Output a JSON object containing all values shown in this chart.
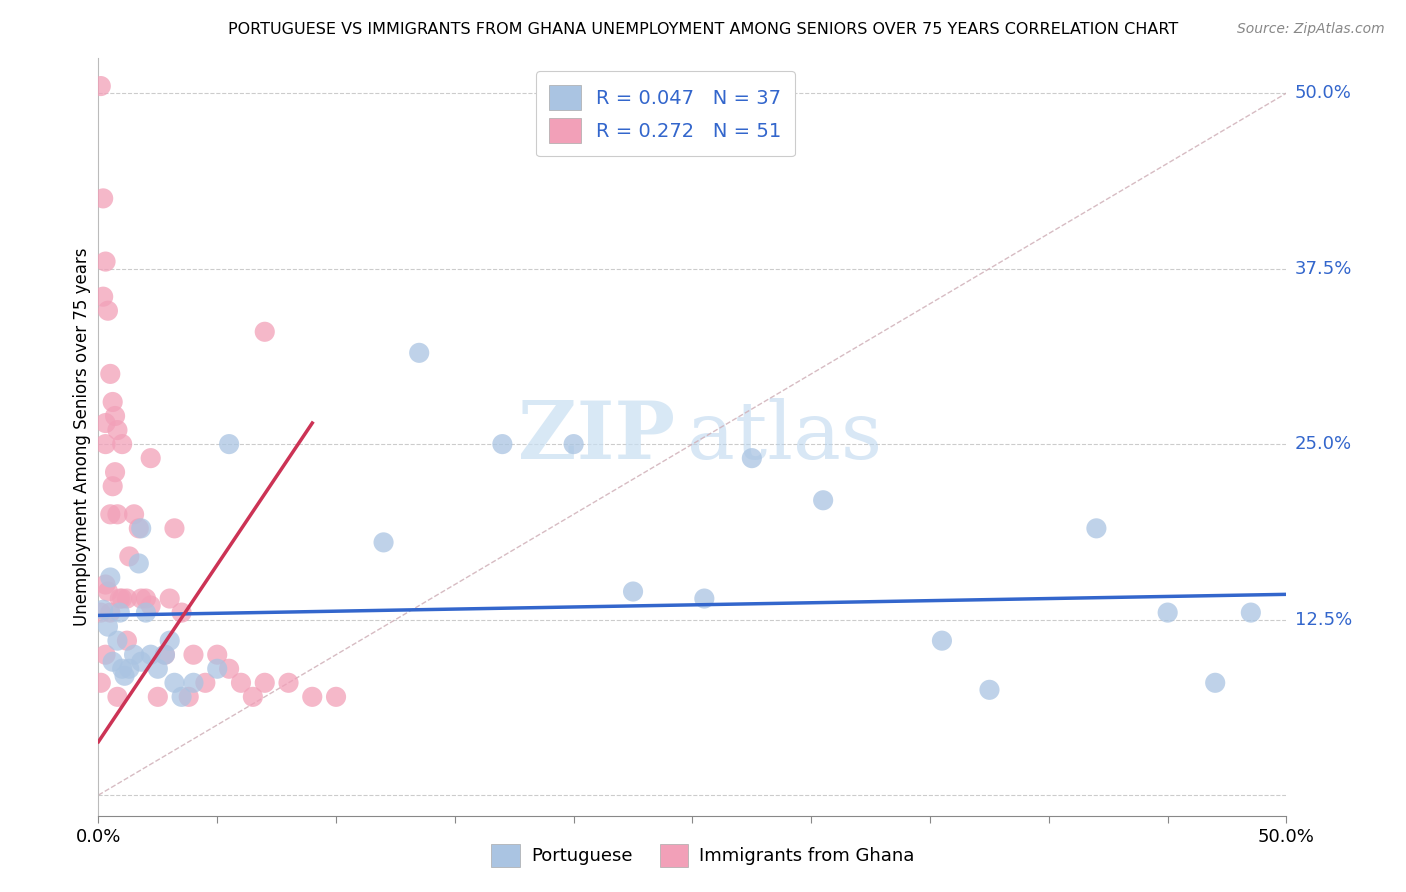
{
  "title": "PORTUGUESE VS IMMIGRANTS FROM GHANA UNEMPLOYMENT AMONG SENIORS OVER 75 YEARS CORRELATION CHART",
  "source": "Source: ZipAtlas.com",
  "ylabel": "Unemployment Among Seniors over 75 years",
  "xlim": [
    0,
    0.5
  ],
  "ylim": [
    -0.015,
    0.525
  ],
  "blue_R": 0.047,
  "blue_N": 37,
  "pink_R": 0.272,
  "pink_N": 51,
  "blue_color": "#aac4e2",
  "pink_color": "#f2a0b8",
  "blue_line_color": "#3366cc",
  "pink_line_color": "#cc3355",
  "diagonal_color": "#d0b0b8",
  "ytick_vals": [
    0.0,
    0.125,
    0.25,
    0.375,
    0.5
  ],
  "ytick_labels": [
    "",
    "12.5%",
    "25.0%",
    "37.5%",
    "50.0%"
  ],
  "xtick_vals": [
    0.0,
    0.05,
    0.1,
    0.15,
    0.2,
    0.25,
    0.3,
    0.35,
    0.4,
    0.45,
    0.5
  ],
  "blue_x": [
    0.002,
    0.004,
    0.005,
    0.006,
    0.008,
    0.009,
    0.01,
    0.011,
    0.013,
    0.015,
    0.017,
    0.018,
    0.02,
    0.022,
    0.025,
    0.028,
    0.03,
    0.032,
    0.035,
    0.04,
    0.05,
    0.055,
    0.12,
    0.135,
    0.17,
    0.2,
    0.225,
    0.255,
    0.275,
    0.305,
    0.355,
    0.375,
    0.42,
    0.45,
    0.47,
    0.485,
    0.018
  ],
  "blue_y": [
    0.132,
    0.12,
    0.155,
    0.095,
    0.11,
    0.13,
    0.09,
    0.085,
    0.09,
    0.1,
    0.165,
    0.19,
    0.13,
    0.1,
    0.09,
    0.1,
    0.11,
    0.08,
    0.07,
    0.08,
    0.09,
    0.25,
    0.18,
    0.315,
    0.25,
    0.25,
    0.145,
    0.14,
    0.24,
    0.21,
    0.11,
    0.075,
    0.19,
    0.13,
    0.08,
    0.13,
    0.095
  ],
  "pink_x": [
    0.001,
    0.001,
    0.001,
    0.002,
    0.002,
    0.003,
    0.003,
    0.003,
    0.003,
    0.004,
    0.004,
    0.005,
    0.005,
    0.005,
    0.006,
    0.006,
    0.007,
    0.007,
    0.008,
    0.008,
    0.008,
    0.009,
    0.01,
    0.01,
    0.012,
    0.013,
    0.015,
    0.017,
    0.018,
    0.02,
    0.022,
    0.025,
    0.028,
    0.03,
    0.032,
    0.035,
    0.038,
    0.04,
    0.045,
    0.05,
    0.055,
    0.06,
    0.065,
    0.07,
    0.08,
    0.09,
    0.1,
    0.012,
    0.022,
    0.07,
    0.003
  ],
  "pink_y": [
    0.505,
    0.13,
    0.08,
    0.425,
    0.355,
    0.38,
    0.265,
    0.25,
    0.1,
    0.345,
    0.145,
    0.3,
    0.2,
    0.13,
    0.28,
    0.22,
    0.27,
    0.23,
    0.26,
    0.2,
    0.07,
    0.14,
    0.25,
    0.14,
    0.14,
    0.17,
    0.2,
    0.19,
    0.14,
    0.14,
    0.135,
    0.07,
    0.1,
    0.14,
    0.19,
    0.13,
    0.07,
    0.1,
    0.08,
    0.1,
    0.09,
    0.08,
    0.07,
    0.08,
    0.08,
    0.07,
    0.07,
    0.11,
    0.24,
    0.33,
    0.15
  ],
  "blue_trend_x": [
    0.0,
    0.5
  ],
  "blue_trend_y": [
    0.128,
    0.143
  ],
  "pink_trend_x": [
    0.0,
    0.09
  ],
  "pink_trend_y": [
    0.038,
    0.265
  ]
}
